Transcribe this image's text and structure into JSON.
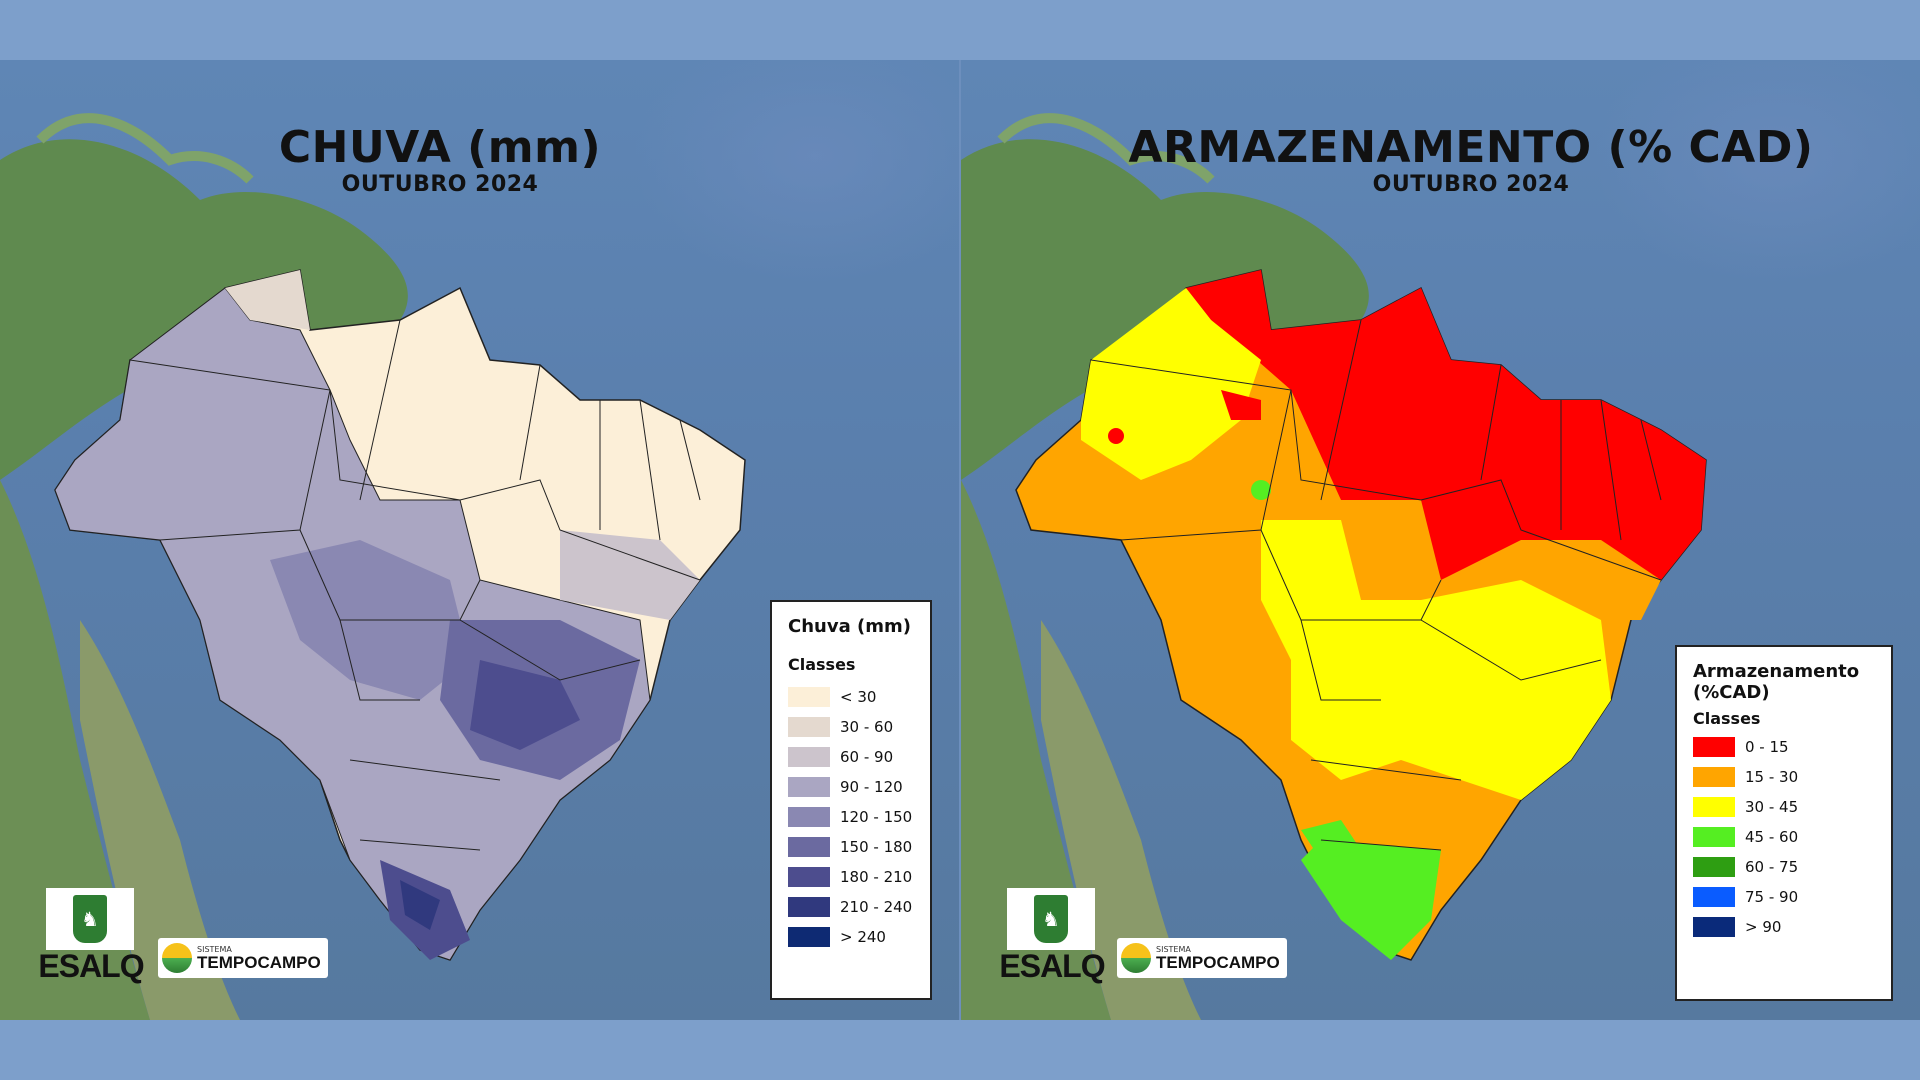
{
  "left_map": {
    "title": "CHUVA (mm)",
    "subtitle": "OUTUBRO 2024",
    "legend": {
      "title": "Chuva (mm)",
      "subtitle": "Classes",
      "items": [
        {
          "label": "< 30",
          "color": "#fcefd8"
        },
        {
          "label": "30 - 60",
          "color": "#e4d9cf"
        },
        {
          "label": "60 - 90",
          "color": "#ccc4cc"
        },
        {
          "label": "90 - 120",
          "color": "#aaa6c2"
        },
        {
          "label": "120 - 150",
          "color": "#8a88b2"
        },
        {
          "label": "150 - 180",
          "color": "#6b6aa0"
        },
        {
          "label": "180 - 210",
          "color": "#4d4d8e"
        },
        {
          "label": "210 - 240",
          "color": "#30397e"
        },
        {
          "label": "> 240",
          "color": "#0e2a73"
        }
      ]
    }
  },
  "right_map": {
    "title": "ARMAZENAMENTO (% CAD)",
    "subtitle": "OUTUBRO 2024",
    "legend": {
      "title": "Armazenamento (%CAD)",
      "subtitle": "Classes",
      "items": [
        {
          "label": "0 - 15",
          "color": "#ff0000"
        },
        {
          "label": "15 - 30",
          "color": "#ffa500"
        },
        {
          "label": "30 - 45",
          "color": "#ffff00"
        },
        {
          "label": "45 - 60",
          "color": "#55ee22"
        },
        {
          "label": "60 - 75",
          "color": "#2e9e12"
        },
        {
          "label": "75 - 90",
          "color": "#0a5cff"
        },
        {
          "label": "> 90",
          "color": "#0a2a7a"
        }
      ]
    }
  },
  "logos": {
    "esalq_text": "ESALQ",
    "tempocampo_small": "SISTEMA",
    "tempocampo_big": "TEMPOCAMPO"
  }
}
